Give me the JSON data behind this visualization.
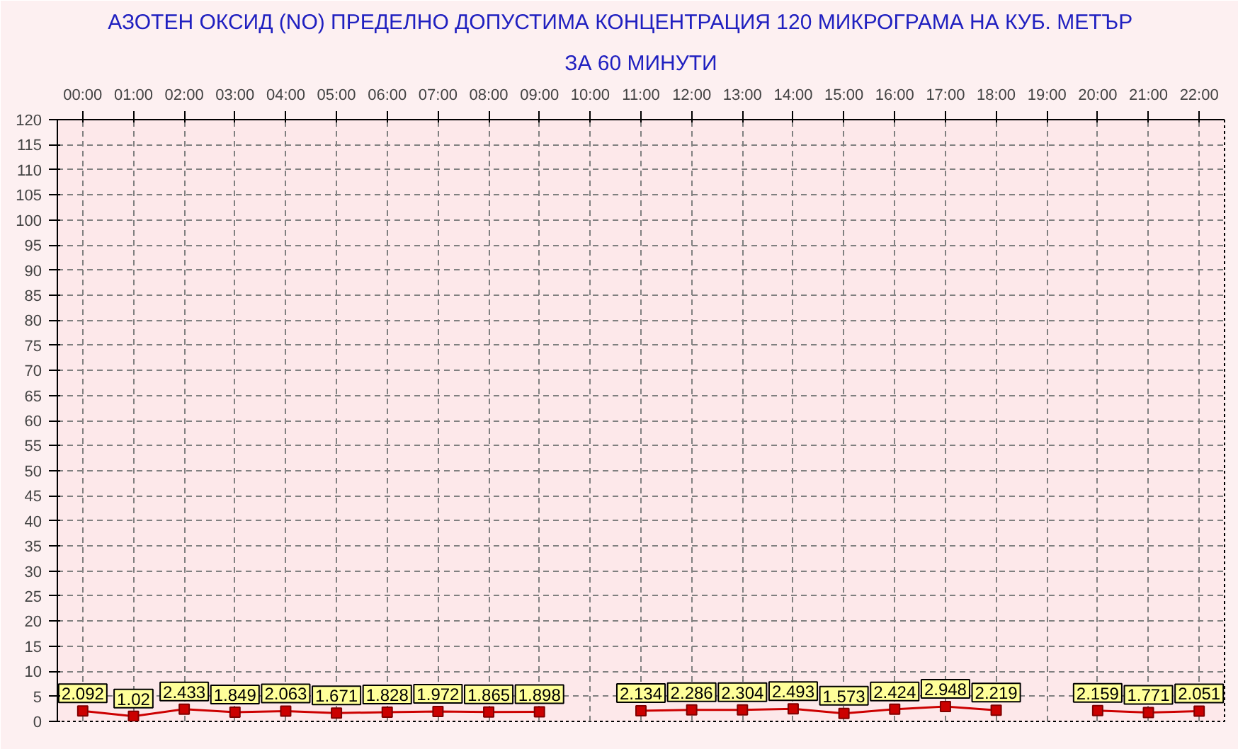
{
  "chart_data": {
    "type": "line",
    "title": "АЗОТЕН ОКСИД   (NO)     ПРЕДЕЛНО ДОПУСТИМА КОНЦЕНТРАЦИЯ 120 МИКРОГРАМА  НА КУБ. МЕТЪР",
    "subtitle": "ЗА 60 МИНУТИ",
    "categories": [
      "00:00",
      "01:00",
      "02:00",
      "03:00",
      "04:00",
      "05:00",
      "06:00",
      "07:00",
      "08:00",
      "09:00",
      "10:00",
      "11:00",
      "12:00",
      "13:00",
      "14:00",
      "15:00",
      "16:00",
      "17:00",
      "18:00",
      "19:00",
      "20:00",
      "21:00",
      "22:00"
    ],
    "series": [
      {
        "color": "#cc0000",
        "values": [
          2.092,
          1.02,
          2.433,
          1.849,
          2.063,
          1.671,
          1.828,
          1.972,
          1.865,
          1.898,
          null,
          2.134,
          2.286,
          2.304,
          2.493,
          1.573,
          2.424,
          2.948,
          2.219,
          null,
          2.159,
          1.771,
          2.051
        ]
      }
    ],
    "ylim": [
      0,
      120
    ],
    "yticks": [
      0,
      5,
      10,
      15,
      20,
      25,
      30,
      35,
      40,
      45,
      50,
      55,
      60,
      65,
      70,
      75,
      80,
      85,
      90,
      95,
      100,
      105,
      110,
      115,
      120
    ],
    "grid": true,
    "marker": "square",
    "line_style": "solid",
    "data_labels": true
  }
}
